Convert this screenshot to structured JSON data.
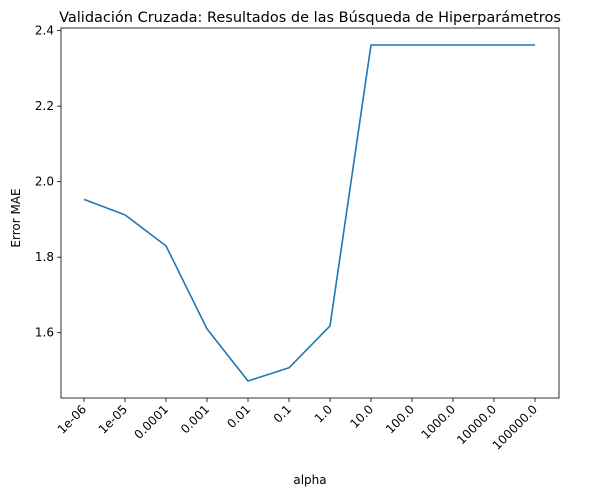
{
  "chart_data": {
    "type": "line",
    "title": "Validación Cruzada: Resultados de las Búsqueda de Hiperparámetros",
    "xlabel": "alpha",
    "ylabel": "Error MAE",
    "categories": [
      "1e-06",
      "1e-05",
      "0.0001",
      "0.001",
      "0.01",
      "0.1",
      "1.0",
      "10.0",
      "100.0",
      "1000.0",
      "10000.0",
      "100000.0"
    ],
    "series": [
      {
        "values": [
          1.953,
          1.912,
          1.83,
          1.61,
          1.472,
          1.507,
          1.618,
          2.362,
          2.362,
          2.362,
          2.362,
          2.362
        ]
      }
    ],
    "yticks": [
      "1.6",
      "1.8",
      "2.0",
      "2.2",
      "2.4"
    ],
    "ylim": [
      1.427,
      2.407
    ],
    "grid": false,
    "line_color": "#1f77b4"
  }
}
